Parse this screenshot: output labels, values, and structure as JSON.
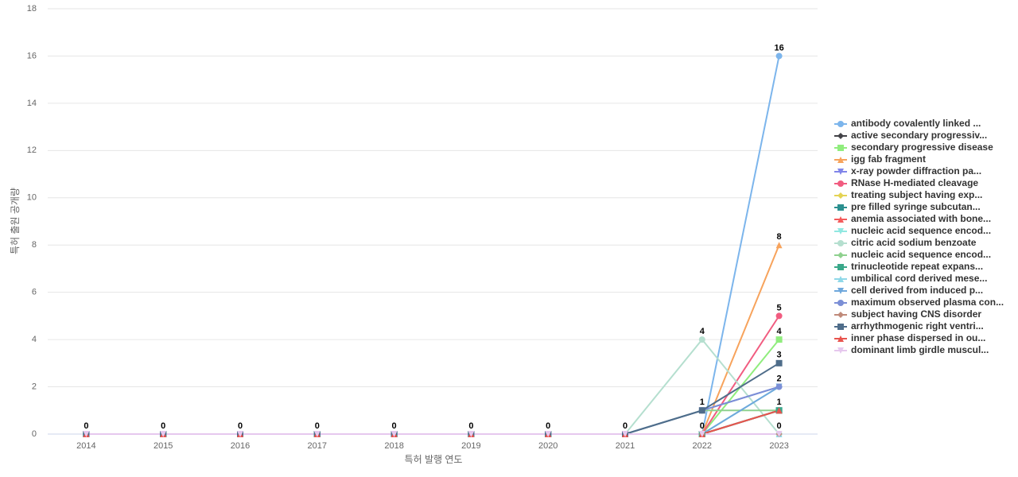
{
  "chart_data": {
    "type": "line",
    "x_label": "특허 발행 연도",
    "y_label": "특허 출원 공개량",
    "categories": [
      "2014",
      "2015",
      "2016",
      "2017",
      "2018",
      "2019",
      "2020",
      "2021",
      "2022",
      "2023"
    ],
    "ylim": [
      0,
      18
    ],
    "yticks": [
      0,
      2,
      4,
      6,
      8,
      10,
      12,
      14,
      16,
      18
    ],
    "grid": true,
    "series": [
      {
        "name": "antibody covalently linked ...",
        "color": "#7cb5ec",
        "marker": "circle",
        "values": [
          0,
          0,
          0,
          0,
          0,
          0,
          0,
          0,
          0,
          16
        ]
      },
      {
        "name": "active secondary progressiv...",
        "color": "#434348",
        "marker": "diamond",
        "values": [
          0,
          0,
          0,
          0,
          0,
          0,
          0,
          0,
          0,
          1
        ]
      },
      {
        "name": "secondary progressive disease",
        "color": "#90ed7d",
        "marker": "square",
        "values": [
          0,
          0,
          0,
          0,
          0,
          0,
          0,
          0,
          0,
          4
        ]
      },
      {
        "name": "igg fab fragment",
        "color": "#f7a35c",
        "marker": "triangle",
        "values": [
          0,
          0,
          0,
          0,
          0,
          0,
          0,
          0,
          0,
          8
        ]
      },
      {
        "name": "x-ray powder diffraction pa...",
        "color": "#8085e9",
        "marker": "triangle-down",
        "values": [
          0,
          0,
          0,
          0,
          0,
          0,
          0,
          0,
          1,
          2
        ]
      },
      {
        "name": "RNase H-mediated cleavage",
        "color": "#f15c80",
        "marker": "circle",
        "values": [
          0,
          0,
          0,
          0,
          0,
          0,
          0,
          0,
          0,
          5
        ]
      },
      {
        "name": "treating subject having exp...",
        "color": "#e4d354",
        "marker": "diamond",
        "values": [
          0,
          0,
          0,
          0,
          0,
          0,
          0,
          0,
          0,
          1
        ]
      },
      {
        "name": "pre filled syringe subcutan...",
        "color": "#2b908f",
        "marker": "square",
        "values": [
          0,
          0,
          0,
          0,
          0,
          0,
          0,
          0,
          0,
          1
        ]
      },
      {
        "name": "anemia associated with bone...",
        "color": "#f45b5b",
        "marker": "triangle",
        "values": [
          0,
          0,
          0,
          0,
          0,
          0,
          0,
          0,
          0,
          1
        ]
      },
      {
        "name": "nucleic acid sequence encod...",
        "color": "#91e8e1",
        "marker": "triangle-down",
        "values": [
          0,
          0,
          0,
          0,
          0,
          0,
          0,
          0,
          0,
          2
        ]
      },
      {
        "name": "citric acid sodium benzoate",
        "color": "#b5dfcf",
        "marker": "circle",
        "values": [
          0,
          0,
          0,
          0,
          0,
          0,
          0,
          0,
          4,
          0
        ]
      },
      {
        "name": "nucleic acid sequence encod...",
        "color": "#8fd18f",
        "marker": "diamond",
        "values": [
          0,
          0,
          0,
          0,
          0,
          0,
          0,
          0,
          1,
          1
        ]
      },
      {
        "name": "trinucleotide repeat expans...",
        "color": "#3aa88a",
        "marker": "square",
        "values": [
          0,
          0,
          0,
          0,
          0,
          0,
          0,
          0,
          0,
          1
        ]
      },
      {
        "name": "umbilical cord derived mese...",
        "color": "#8fd8e8",
        "marker": "triangle",
        "values": [
          0,
          0,
          0,
          0,
          0,
          0,
          0,
          0,
          0,
          0
        ]
      },
      {
        "name": "cell derived from induced p...",
        "color": "#6fa8dc",
        "marker": "triangle-down",
        "values": [
          0,
          0,
          0,
          0,
          0,
          0,
          0,
          0,
          0,
          2
        ]
      },
      {
        "name": "maximum observed plasma con...",
        "color": "#7b8fd6",
        "marker": "circle",
        "values": [
          0,
          0,
          0,
          0,
          0,
          0,
          0,
          0,
          1,
          2
        ]
      },
      {
        "name": "subject having CNS disorder",
        "color": "#c08a7a",
        "marker": "diamond",
        "values": [
          0,
          0,
          0,
          0,
          0,
          0,
          0,
          0,
          0,
          0
        ]
      },
      {
        "name": "arrhythmogenic right ventri...",
        "color": "#4f6d8a",
        "marker": "square",
        "values": [
          0,
          0,
          0,
          0,
          0,
          0,
          0,
          0,
          1,
          3
        ]
      },
      {
        "name": "inner phase dispersed in ou...",
        "color": "#e8544e",
        "marker": "triangle",
        "values": [
          0,
          0,
          0,
          0,
          0,
          0,
          0,
          0,
          0,
          1
        ]
      },
      {
        "name": "dominant limb girdle muscul...",
        "color": "#e6c8ee",
        "marker": "triangle-down",
        "values": [
          0,
          0,
          0,
          0,
          0,
          0,
          0,
          0,
          0,
          0
        ]
      }
    ]
  }
}
